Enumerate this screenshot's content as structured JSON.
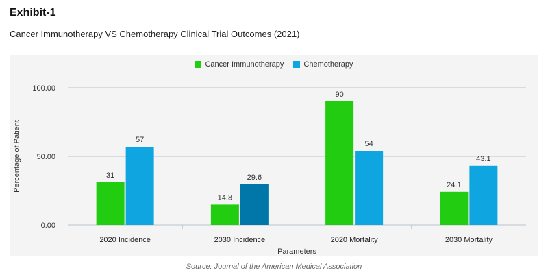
{
  "header": {
    "exhibit": "Exhibit-1",
    "subtitle": "Cancer Immunotherapy VS Chemotherapy Clinical Trial Outcomes (2021)"
  },
  "source": "Source: Journal of the American Medical Association",
  "colors": {
    "immuno": "#22cc11",
    "chemo": "#0ea5e0",
    "chemo_highlight": "#0077a8",
    "grid": "#b8c4cc"
  },
  "chart_data": {
    "type": "bar",
    "categories": [
      "2020 Incidence",
      "2030 Incidence",
      "2020 Mortality",
      "2030 Mortality"
    ],
    "series": [
      {
        "name": "Cancer Immunotherapy",
        "values": [
          31,
          14.8,
          90,
          24.1
        ],
        "labels": [
          "31",
          "14.8",
          "90",
          "24.1"
        ]
      },
      {
        "name": "Chemotherapy",
        "values": [
          57,
          29.6,
          54,
          43.1
        ],
        "labels": [
          "57",
          "29.6",
          "54",
          "43.1"
        ]
      }
    ],
    "xlabel": "Parameters",
    "ylabel": "Percentage of Patient",
    "ylim": [
      0,
      100
    ],
    "yticks": [
      0,
      50,
      100
    ],
    "ytick_labels": [
      "0.00",
      "50.00",
      "100.00"
    ],
    "legend_position": "top-center",
    "grid": true
  }
}
